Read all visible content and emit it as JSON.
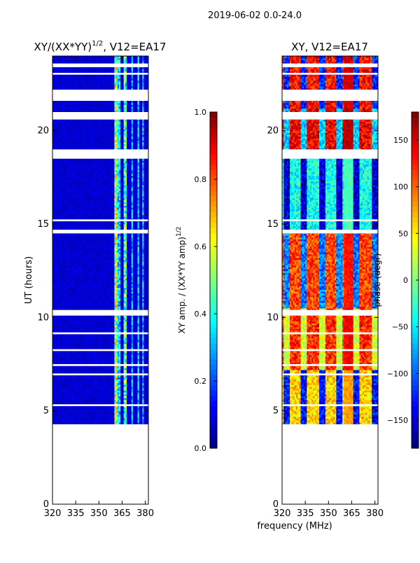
{
  "figure": {
    "suptitle": "2019-06-02 0.0-24.0",
    "xlabel": "frequency (MHz)"
  },
  "colors": {
    "jet": [
      "#00007f",
      "#0000ff",
      "#007fff",
      "#00ffff",
      "#7fff7f",
      "#ffff00",
      "#ff7f00",
      "#ff0000",
      "#7f0000"
    ],
    "flagged_gap": "#ffffff"
  },
  "chart_data": [
    {
      "type": "heatmap",
      "panel": "left",
      "title": "XY/(XX*YY)",
      "title_superscript": "1/2",
      "title_suffix": ", V12=EA17",
      "xlabel": "",
      "ylabel": "UT (hours)",
      "xlim": [
        320,
        382
      ],
      "ylim": [
        0,
        24
      ],
      "xticks": [
        "320",
        "335",
        "350",
        "365",
        "380"
      ],
      "xtick_values": [
        320,
        335,
        350,
        365,
        380
      ],
      "yticks": [
        "0",
        "5",
        "10",
        "15",
        "20"
      ],
      "ytick_values": [
        0,
        5,
        10,
        15,
        20
      ],
      "data_time_range_hours": [
        4.3,
        24.0
      ],
      "colorbar": {
        "label": "XY amp. / (XX*YY amp)",
        "label_superscript": "1/2",
        "range": [
          0.0,
          1.0
        ],
        "ticks": [
          "0.0",
          "0.2",
          "0.4",
          "0.6",
          "0.8",
          "1.0"
        ],
        "tick_values": [
          0.0,
          0.2,
          0.4,
          0.6,
          0.8,
          1.0
        ]
      },
      "dominant_value": 0.05,
      "frequency_features_mhz": [
        {
          "range": [
            360,
            362
          ],
          "value": 0.55
        },
        {
          "range": [
            362,
            364
          ],
          "value": 0.35
        },
        {
          "range": [
            366,
            368
          ],
          "value": 0.45
        },
        {
          "range": [
            371,
            372
          ],
          "value": 0.3
        },
        {
          "range": [
            375,
            376
          ],
          "value": 0.35
        },
        {
          "range": [
            378,
            379
          ],
          "value": 0.3
        }
      ],
      "flagged_time_gaps_hours": [
        [
          5.25,
          5.35
        ],
        [
          6.9,
          7.0
        ],
        [
          7.4,
          7.5
        ],
        [
          8.2,
          8.3
        ],
        [
          9.1,
          9.2
        ],
        [
          10.1,
          10.4
        ],
        [
          14.5,
          14.7
        ],
        [
          15.15,
          15.25
        ],
        [
          18.5,
          19.0
        ],
        [
          20.6,
          21.0
        ],
        [
          21.6,
          22.2
        ],
        [
          23.0,
          23.1
        ],
        [
          23.4,
          23.6
        ]
      ]
    },
    {
      "type": "heatmap",
      "panel": "right",
      "title": "XY, V12=EA17",
      "xlabel": "",
      "ylabel": "",
      "xlim": [
        320,
        382
      ],
      "ylim": [
        0,
        24
      ],
      "xticks": [
        "320",
        "335",
        "350",
        "365",
        "380"
      ],
      "xtick_values": [
        320,
        335,
        350,
        365,
        380
      ],
      "yticks": [
        "0",
        "5",
        "10",
        "15",
        "20"
      ],
      "ytick_values": [
        0,
        5,
        10,
        15,
        20
      ],
      "data_time_range_hours": [
        4.3,
        24.0
      ],
      "colorbar": {
        "label": "phase (degr)",
        "range": [
          -180,
          180
        ],
        "ticks": [
          "−150",
          "−100",
          "−50",
          "0",
          "50",
          "100",
          "150"
        ],
        "tick_values": [
          -150,
          -100,
          -50,
          0,
          50,
          100,
          150
        ]
      },
      "time_blocks": [
        {
          "range_hours": [
            4.3,
            7.2
          ],
          "base_phase": 60,
          "feature_phase": -130
        },
        {
          "range_hours": [
            7.2,
            10.5
          ],
          "base_phase": 120,
          "feature_phase": 30
        },
        {
          "range_hours": [
            10.5,
            14.6
          ],
          "base_phase": 110,
          "feature_phase": -90
        },
        {
          "range_hours": [
            14.6,
            18.7
          ],
          "base_phase": -40,
          "feature_phase": -150
        },
        {
          "range_hours": [
            18.7,
            21.2
          ],
          "base_phase": 140,
          "feature_phase": -60
        },
        {
          "range_hours": [
            21.2,
            24.0
          ],
          "base_phase": 130,
          "feature_phase": -120
        }
      ],
      "flagged_time_gaps_hours": [
        [
          5.25,
          5.35
        ],
        [
          6.9,
          7.0
        ],
        [
          7.4,
          7.5
        ],
        [
          8.2,
          8.3
        ],
        [
          9.1,
          9.2
        ],
        [
          10.1,
          10.4
        ],
        [
          14.5,
          14.7
        ],
        [
          15.15,
          15.25
        ],
        [
          18.5,
          19.0
        ],
        [
          20.6,
          21.0
        ],
        [
          21.6,
          22.2
        ],
        [
          23.0,
          23.1
        ],
        [
          23.4,
          23.6
        ]
      ]
    }
  ]
}
